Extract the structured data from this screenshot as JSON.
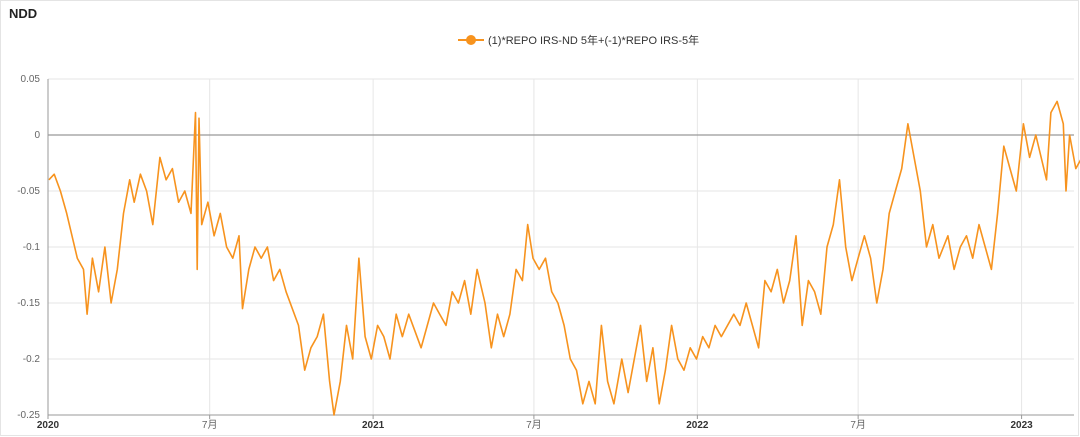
{
  "title": "NDD",
  "legend": {
    "label": "(1)*REPO IRS-ND 5年+(-1)*REPO IRS-5年"
  },
  "colors": {
    "series": "#F7931E",
    "axis": "#999999",
    "grid": "#e6e6e6",
    "zero_line": "#999999"
  },
  "chart_data": {
    "type": "line",
    "title": "NDD",
    "legend_position": "top-center",
    "grid": true,
    "ylim": [
      -0.25,
      0.05
    ],
    "xlim": [
      "2020-01-01",
      "2023-03-01"
    ],
    "y_ticks": [
      "0.05",
      "0",
      "-0.05",
      "-0.1",
      "-0.15",
      "-0.2",
      "-0.25"
    ],
    "x_ticks": [
      {
        "date": "2020-01-01",
        "label": "2020",
        "bold": true
      },
      {
        "date": "2020-07-01",
        "label": "7月",
        "bold": false
      },
      {
        "date": "2021-01-01",
        "label": "2021",
        "bold": true
      },
      {
        "date": "2021-07-01",
        "label": "7月",
        "bold": false
      },
      {
        "date": "2022-01-01",
        "label": "2022",
        "bold": true
      },
      {
        "date": "2022-07-01",
        "label": "7月",
        "bold": false
      },
      {
        "date": "2023-01-01",
        "label": "2023",
        "bold": true
      }
    ],
    "series": [
      {
        "name": "(1)*REPO IRS-ND 5年+(-1)*REPO IRS-5年",
        "points": [
          [
            "2020-01-02",
            -0.04
          ],
          [
            "2020-01-08",
            -0.035
          ],
          [
            "2020-01-15",
            -0.05
          ],
          [
            "2020-01-22",
            -0.07
          ],
          [
            "2020-02-03",
            -0.11
          ],
          [
            "2020-02-10",
            -0.12
          ],
          [
            "2020-02-14",
            -0.16
          ],
          [
            "2020-02-20",
            -0.11
          ],
          [
            "2020-02-27",
            -0.14
          ],
          [
            "2020-03-05",
            -0.1
          ],
          [
            "2020-03-12",
            -0.15
          ],
          [
            "2020-03-19",
            -0.12
          ],
          [
            "2020-03-26",
            -0.07
          ],
          [
            "2020-04-02",
            -0.04
          ],
          [
            "2020-04-07",
            -0.06
          ],
          [
            "2020-04-14",
            -0.035
          ],
          [
            "2020-04-21",
            -0.05
          ],
          [
            "2020-04-28",
            -0.08
          ],
          [
            "2020-05-06",
            -0.02
          ],
          [
            "2020-05-13",
            -0.04
          ],
          [
            "2020-05-20",
            -0.03
          ],
          [
            "2020-05-27",
            -0.06
          ],
          [
            "2020-06-03",
            -0.05
          ],
          [
            "2020-06-10",
            -0.07
          ],
          [
            "2020-06-15",
            0.02
          ],
          [
            "2020-06-17",
            -0.12
          ],
          [
            "2020-06-19",
            0.015
          ],
          [
            "2020-06-22",
            -0.08
          ],
          [
            "2020-06-29",
            -0.06
          ],
          [
            "2020-07-06",
            -0.09
          ],
          [
            "2020-07-13",
            -0.07
          ],
          [
            "2020-07-20",
            -0.1
          ],
          [
            "2020-07-27",
            -0.11
          ],
          [
            "2020-08-03",
            -0.09
          ],
          [
            "2020-08-07",
            -0.155
          ],
          [
            "2020-08-14",
            -0.12
          ],
          [
            "2020-08-21",
            -0.1
          ],
          [
            "2020-08-28",
            -0.11
          ],
          [
            "2020-09-04",
            -0.1
          ],
          [
            "2020-09-11",
            -0.13
          ],
          [
            "2020-09-18",
            -0.12
          ],
          [
            "2020-09-25",
            -0.14
          ],
          [
            "2020-10-09",
            -0.17
          ],
          [
            "2020-10-16",
            -0.21
          ],
          [
            "2020-10-23",
            -0.19
          ],
          [
            "2020-10-30",
            -0.18
          ],
          [
            "2020-11-06",
            -0.16
          ],
          [
            "2020-11-13",
            -0.22
          ],
          [
            "2020-11-18",
            -0.25
          ],
          [
            "2020-11-25",
            -0.22
          ],
          [
            "2020-12-02",
            -0.17
          ],
          [
            "2020-12-09",
            -0.2
          ],
          [
            "2020-12-16",
            -0.11
          ],
          [
            "2020-12-23",
            -0.18
          ],
          [
            "2020-12-30",
            -0.2
          ],
          [
            "2021-01-06",
            -0.17
          ],
          [
            "2021-01-13",
            -0.18
          ],
          [
            "2021-01-20",
            -0.2
          ],
          [
            "2021-01-27",
            -0.16
          ],
          [
            "2021-02-03",
            -0.18
          ],
          [
            "2021-02-10",
            -0.16
          ],
          [
            "2021-02-24",
            -0.19
          ],
          [
            "2021-03-03",
            -0.17
          ],
          [
            "2021-03-10",
            -0.15
          ],
          [
            "2021-03-17",
            -0.16
          ],
          [
            "2021-03-24",
            -0.17
          ],
          [
            "2021-03-31",
            -0.14
          ],
          [
            "2021-04-07",
            -0.15
          ],
          [
            "2021-04-14",
            -0.13
          ],
          [
            "2021-04-21",
            -0.16
          ],
          [
            "2021-04-28",
            -0.12
          ],
          [
            "2021-05-07",
            -0.15
          ],
          [
            "2021-05-14",
            -0.19
          ],
          [
            "2021-05-21",
            -0.16
          ],
          [
            "2021-05-28",
            -0.18
          ],
          [
            "2021-06-04",
            -0.16
          ],
          [
            "2021-06-11",
            -0.12
          ],
          [
            "2021-06-18",
            -0.13
          ],
          [
            "2021-06-24",
            -0.08
          ],
          [
            "2021-06-30",
            -0.11
          ],
          [
            "2021-07-07",
            -0.12
          ],
          [
            "2021-07-14",
            -0.11
          ],
          [
            "2021-07-21",
            -0.14
          ],
          [
            "2021-07-28",
            -0.15
          ],
          [
            "2021-08-04",
            -0.17
          ],
          [
            "2021-08-11",
            -0.2
          ],
          [
            "2021-08-18",
            -0.21
          ],
          [
            "2021-08-25",
            -0.24
          ],
          [
            "2021-09-01",
            -0.22
          ],
          [
            "2021-09-08",
            -0.24
          ],
          [
            "2021-09-15",
            -0.17
          ],
          [
            "2021-09-22",
            -0.22
          ],
          [
            "2021-09-29",
            -0.24
          ],
          [
            "2021-10-08",
            -0.2
          ],
          [
            "2021-10-15",
            -0.23
          ],
          [
            "2021-10-22",
            -0.2
          ],
          [
            "2021-10-29",
            -0.17
          ],
          [
            "2021-11-05",
            -0.22
          ],
          [
            "2021-11-12",
            -0.19
          ],
          [
            "2021-11-19",
            -0.24
          ],
          [
            "2021-11-26",
            -0.21
          ],
          [
            "2021-12-03",
            -0.17
          ],
          [
            "2021-12-10",
            -0.2
          ],
          [
            "2021-12-17",
            -0.21
          ],
          [
            "2021-12-24",
            -0.19
          ],
          [
            "2021-12-31",
            -0.2
          ],
          [
            "2022-01-07",
            -0.18
          ],
          [
            "2022-01-14",
            -0.19
          ],
          [
            "2022-01-21",
            -0.17
          ],
          [
            "2022-01-28",
            -0.18
          ],
          [
            "2022-02-11",
            -0.16
          ],
          [
            "2022-02-18",
            -0.17
          ],
          [
            "2022-02-25",
            -0.15
          ],
          [
            "2022-03-04",
            -0.17
          ],
          [
            "2022-03-11",
            -0.19
          ],
          [
            "2022-03-18",
            -0.13
          ],
          [
            "2022-03-25",
            -0.14
          ],
          [
            "2022-04-01",
            -0.12
          ],
          [
            "2022-04-08",
            -0.15
          ],
          [
            "2022-04-15",
            -0.13
          ],
          [
            "2022-04-22",
            -0.09
          ],
          [
            "2022-04-29",
            -0.17
          ],
          [
            "2022-05-06",
            -0.13
          ],
          [
            "2022-05-13",
            -0.14
          ],
          [
            "2022-05-20",
            -0.16
          ],
          [
            "2022-05-27",
            -0.1
          ],
          [
            "2022-06-03",
            -0.08
          ],
          [
            "2022-06-10",
            -0.04
          ],
          [
            "2022-06-17",
            -0.1
          ],
          [
            "2022-06-24",
            -0.13
          ],
          [
            "2022-07-01",
            -0.11
          ],
          [
            "2022-07-08",
            -0.09
          ],
          [
            "2022-07-15",
            -0.11
          ],
          [
            "2022-07-22",
            -0.15
          ],
          [
            "2022-07-29",
            -0.12
          ],
          [
            "2022-08-05",
            -0.07
          ],
          [
            "2022-08-12",
            -0.05
          ],
          [
            "2022-08-19",
            -0.03
          ],
          [
            "2022-08-26",
            0.01
          ],
          [
            "2022-09-02",
            -0.02
          ],
          [
            "2022-09-09",
            -0.05
          ],
          [
            "2022-09-16",
            -0.1
          ],
          [
            "2022-09-23",
            -0.08
          ],
          [
            "2022-09-30",
            -0.11
          ],
          [
            "2022-10-10",
            -0.09
          ],
          [
            "2022-10-17",
            -0.12
          ],
          [
            "2022-10-24",
            -0.1
          ],
          [
            "2022-10-31",
            -0.09
          ],
          [
            "2022-11-07",
            -0.11
          ],
          [
            "2022-11-14",
            -0.08
          ],
          [
            "2022-11-21",
            -0.1
          ],
          [
            "2022-11-28",
            -0.12
          ],
          [
            "2022-12-05",
            -0.07
          ],
          [
            "2022-12-12",
            -0.01
          ],
          [
            "2022-12-19",
            -0.03
          ],
          [
            "2022-12-26",
            -0.05
          ],
          [
            "2023-01-03",
            0.01
          ],
          [
            "2023-01-10",
            -0.02
          ],
          [
            "2023-01-17",
            0.0
          ],
          [
            "2023-01-29",
            -0.04
          ],
          [
            "2023-02-03",
            0.02
          ],
          [
            "2023-02-10",
            0.03
          ],
          [
            "2023-02-17",
            0.01
          ],
          [
            "2023-02-20",
            -0.05
          ],
          [
            "2023-02-24",
            0.0
          ],
          [
            "2023-03-03",
            -0.03
          ],
          [
            "2023-03-10",
            -0.02
          ]
        ]
      }
    ]
  }
}
